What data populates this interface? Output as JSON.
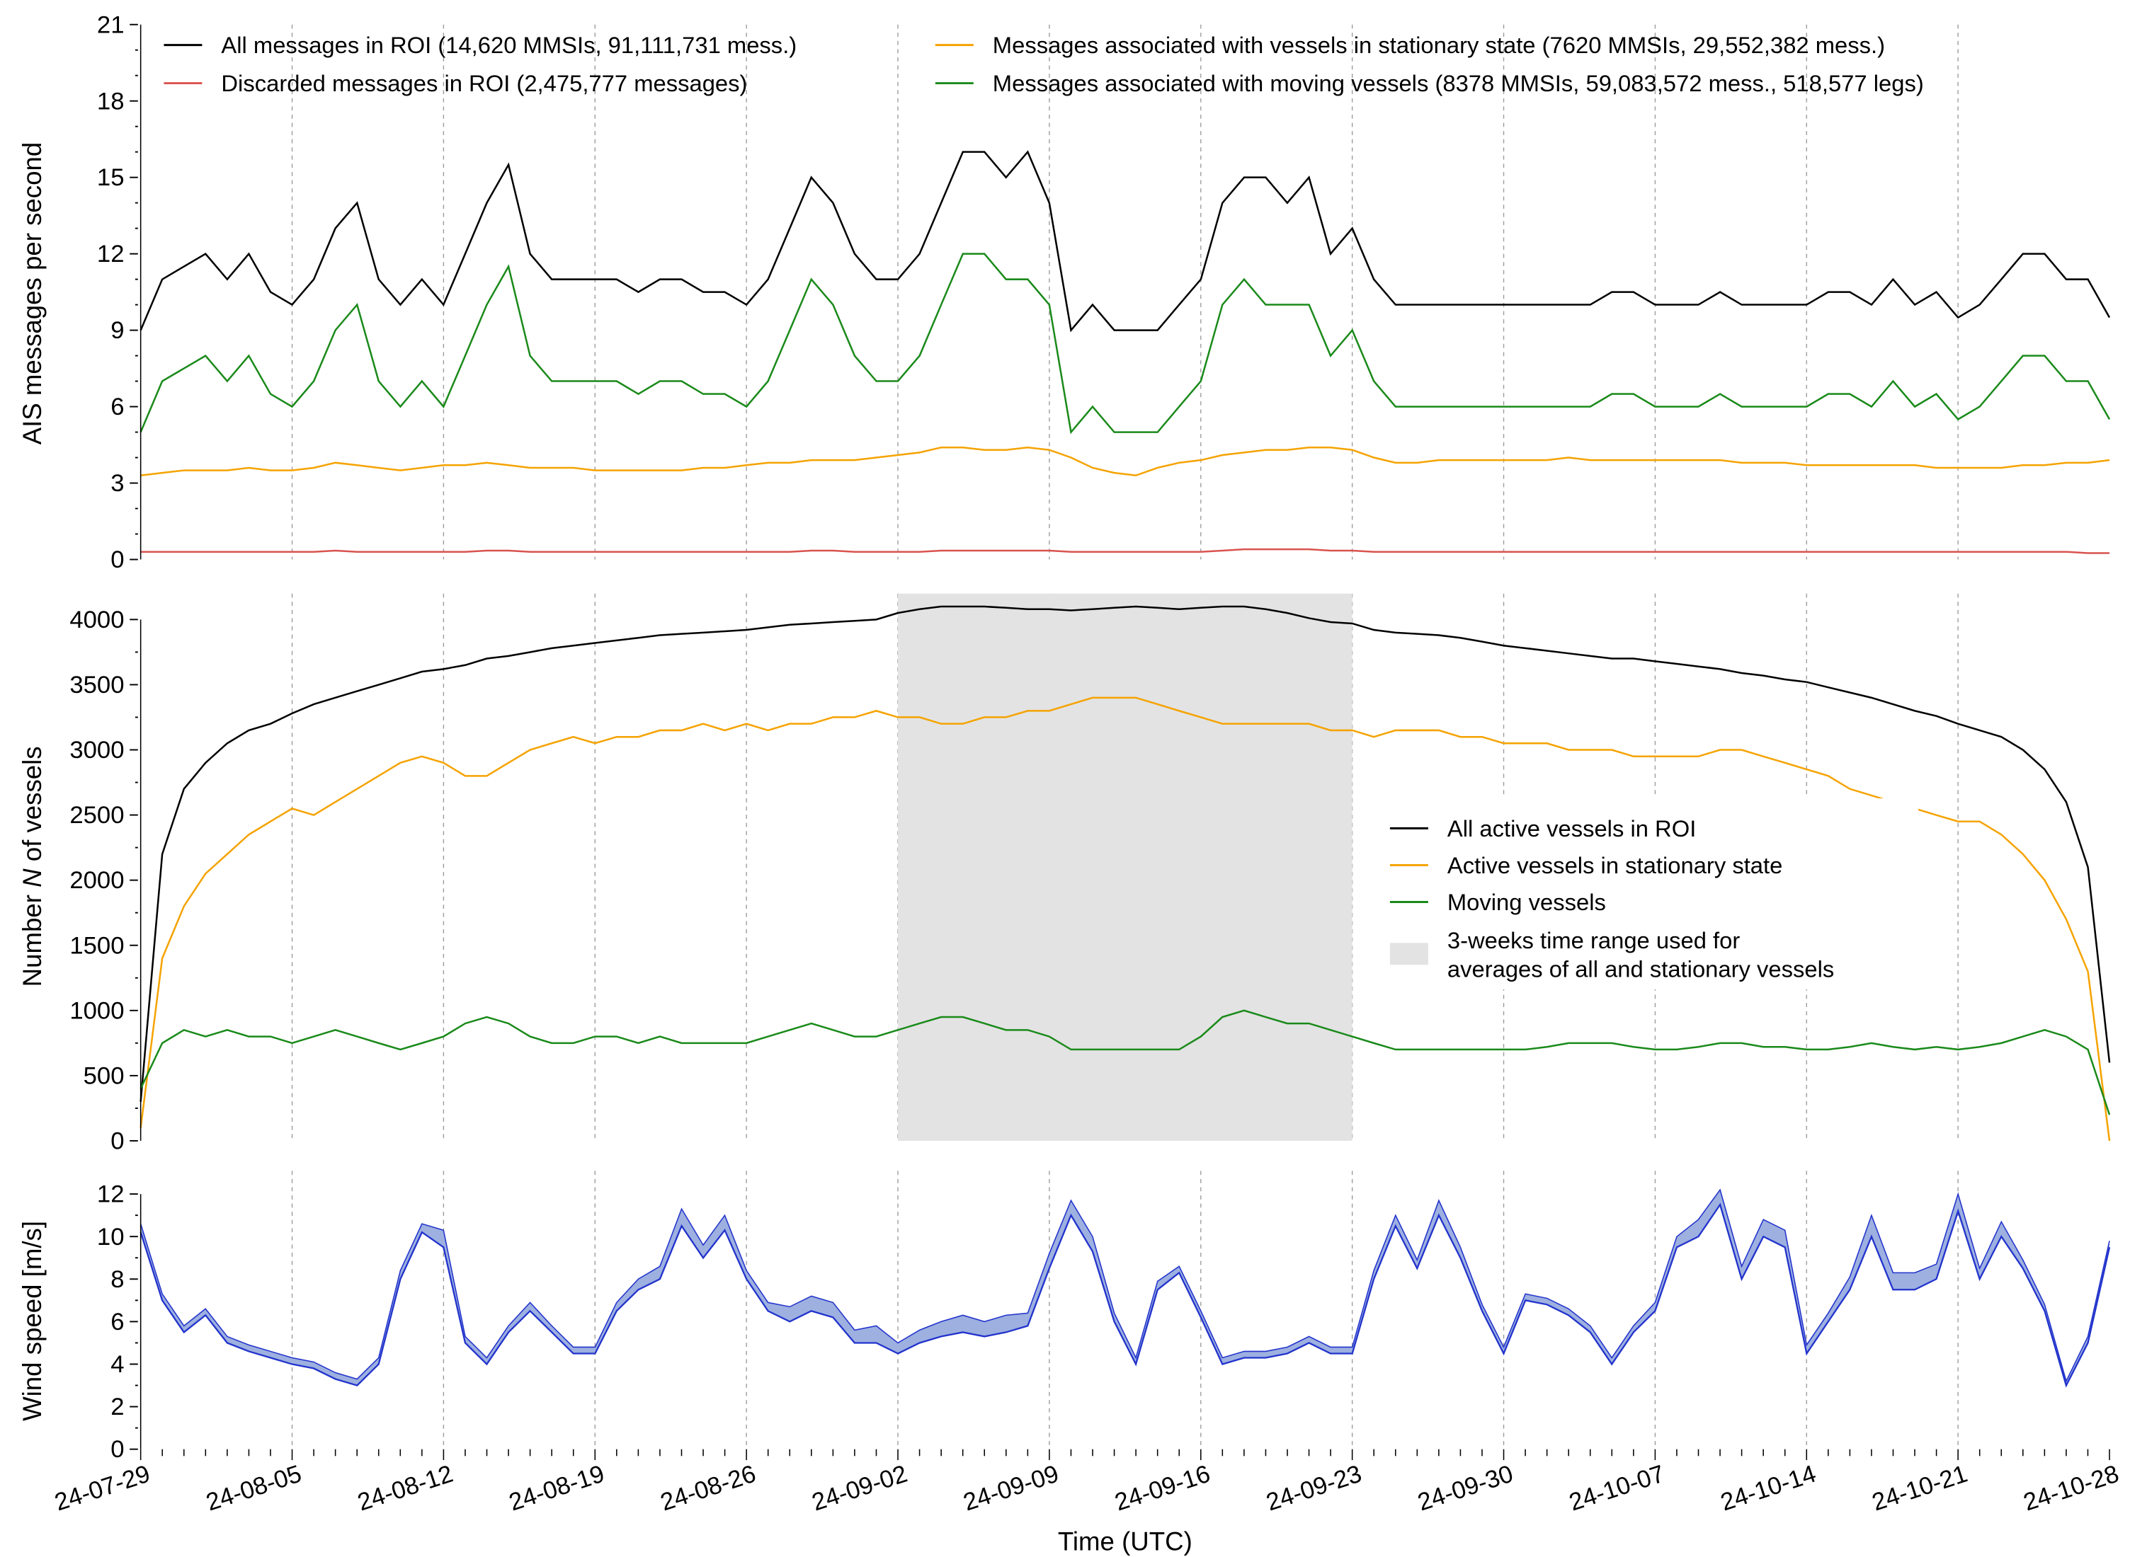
{
  "chart_data": [
    {
      "type": "line",
      "panel": "messages",
      "ylabel": "AIS messages per second",
      "ylim": [
        0,
        21
      ],
      "yticks": [
        0,
        3,
        6,
        9,
        12,
        15,
        18,
        21
      ],
      "legend_placement": "top",
      "x_start": "2024-07-29",
      "x_step_days": 1,
      "series": [
        {
          "name": "All messages in ROI (14,620 MMSIs, 91,111,731 mess.)",
          "color": "#000000",
          "values": [
            9,
            11,
            11.5,
            12,
            11,
            12,
            10.5,
            10,
            11,
            13,
            14,
            11,
            10,
            11,
            10,
            12,
            14,
            15.5,
            12,
            11,
            11,
            11,
            11,
            10.5,
            11,
            11,
            10.5,
            10.5,
            10,
            11,
            13,
            15,
            14,
            12,
            11,
            11,
            12,
            14,
            16,
            16,
            15,
            16,
            14,
            9,
            10,
            9,
            9,
            9,
            10,
            11,
            14,
            15,
            15,
            14,
            15,
            12,
            13,
            11,
            10,
            10,
            10,
            10,
            10,
            10,
            10,
            10,
            10,
            10,
            10.5,
            10.5,
            10,
            10,
            10,
            10.5,
            10,
            10,
            10,
            10,
            10.5,
            10.5,
            10,
            11,
            10,
            10.5,
            9.5,
            10,
            11,
            12,
            12,
            11,
            11,
            9.5
          ]
        },
        {
          "name": "Discarded messages in ROI (2,475,777 messages)",
          "color": "#d9534f",
          "values": [
            0.3,
            0.3,
            0.3,
            0.3,
            0.3,
            0.3,
            0.3,
            0.3,
            0.3,
            0.35,
            0.3,
            0.3,
            0.3,
            0.3,
            0.3,
            0.3,
            0.35,
            0.35,
            0.3,
            0.3,
            0.3,
            0.3,
            0.3,
            0.3,
            0.3,
            0.3,
            0.3,
            0.3,
            0.3,
            0.3,
            0.3,
            0.35,
            0.35,
            0.3,
            0.3,
            0.3,
            0.3,
            0.35,
            0.35,
            0.35,
            0.35,
            0.35,
            0.35,
            0.3,
            0.3,
            0.3,
            0.3,
            0.3,
            0.3,
            0.3,
            0.35,
            0.4,
            0.4,
            0.4,
            0.4,
            0.35,
            0.35,
            0.3,
            0.3,
            0.3,
            0.3,
            0.3,
            0.3,
            0.3,
            0.3,
            0.3,
            0.3,
            0.3,
            0.3,
            0.3,
            0.3,
            0.3,
            0.3,
            0.3,
            0.3,
            0.3,
            0.3,
            0.3,
            0.3,
            0.3,
            0.3,
            0.3,
            0.3,
            0.3,
            0.3,
            0.3,
            0.3,
            0.3,
            0.3,
            0.3,
            0.25,
            0.25
          ]
        },
        {
          "name": "Messages associated with vessels in stationary state (7620 MMSIs, 29,552,382 mess.)",
          "color": "#f5a300",
          "values": [
            3.3,
            3.4,
            3.5,
            3.5,
            3.5,
            3.6,
            3.5,
            3.5,
            3.6,
            3.8,
            3.7,
            3.6,
            3.5,
            3.6,
            3.7,
            3.7,
            3.8,
            3.7,
            3.6,
            3.6,
            3.6,
            3.5,
            3.5,
            3.5,
            3.5,
            3.5,
            3.6,
            3.6,
            3.7,
            3.8,
            3.8,
            3.9,
            3.9,
            3.9,
            4.0,
            4.1,
            4.2,
            4.4,
            4.4,
            4.3,
            4.3,
            4.4,
            4.3,
            4.0,
            3.6,
            3.4,
            3.3,
            3.6,
            3.8,
            3.9,
            4.1,
            4.2,
            4.3,
            4.3,
            4.4,
            4.4,
            4.3,
            4.0,
            3.8,
            3.8,
            3.9,
            3.9,
            3.9,
            3.9,
            3.9,
            3.9,
            4.0,
            3.9,
            3.9,
            3.9,
            3.9,
            3.9,
            3.9,
            3.9,
            3.8,
            3.8,
            3.8,
            3.7,
            3.7,
            3.7,
            3.7,
            3.7,
            3.7,
            3.6,
            3.6,
            3.6,
            3.6,
            3.7,
            3.7,
            3.8,
            3.8,
            3.9
          ]
        },
        {
          "name": "Messages associated with moving vessels (8378 MMSIs, 59,083,572 mess., 518,577 legs)",
          "color": "#1a8a1a",
          "values": [
            5,
            7,
            7.5,
            8,
            7,
            8,
            6.5,
            6,
            7,
            9,
            10,
            7,
            6,
            7,
            6,
            8,
            10,
            11.5,
            8,
            7,
            7,
            7,
            7,
            6.5,
            7,
            7,
            6.5,
            6.5,
            6,
            7,
            9,
            11,
            10,
            8,
            7,
            7,
            8,
            10,
            12,
            12,
            11,
            11,
            10,
            5,
            6,
            5,
            5,
            5,
            6,
            7,
            10,
            11,
            10,
            10,
            10,
            8,
            9,
            7,
            6,
            6,
            6,
            6,
            6,
            6,
            6,
            6,
            6,
            6,
            6.5,
            6.5,
            6,
            6,
            6,
            6.5,
            6,
            6,
            6,
            6,
            6.5,
            6.5,
            6,
            7,
            6,
            6.5,
            5.5,
            6,
            7,
            8,
            8,
            7,
            7,
            5.5
          ]
        }
      ]
    },
    {
      "type": "line",
      "panel": "vessels",
      "ylabel_parts": [
        "Number ",
        "N",
        " of vessels"
      ],
      "ylim": [
        0,
        4200
      ],
      "yticks": [
        0,
        500,
        1000,
        1500,
        2000,
        2500,
        3000,
        3500,
        4000
      ],
      "legend_placement": "center-right",
      "x_start": "2024-07-29",
      "x_step_days": 1,
      "shaded_range": {
        "label_lines": [
          "3-weeks time range used for",
          "averages of all and stationary vessels"
        ],
        "start": "24-09-02",
        "end": "24-09-23",
        "color": "#e3e3e3"
      },
      "series": [
        {
          "name": "All active vessels in ROI",
          "color": "#000000",
          "values": [
            300,
            2200,
            2700,
            2900,
            3050,
            3150,
            3200,
            3280,
            3350,
            3400,
            3450,
            3500,
            3550,
            3600,
            3620,
            3650,
            3700,
            3720,
            3750,
            3780,
            3800,
            3820,
            3840,
            3860,
            3880,
            3890,
            3900,
            3910,
            3920,
            3940,
            3960,
            3970,
            3980,
            3990,
            4000,
            4050,
            4080,
            4100,
            4100,
            4100,
            4090,
            4080,
            4080,
            4070,
            4080,
            4090,
            4100,
            4090,
            4080,
            4090,
            4100,
            4100,
            4080,
            4050,
            4010,
            3980,
            3970,
            3920,
            3900,
            3890,
            3880,
            3860,
            3830,
            3800,
            3780,
            3760,
            3740,
            3720,
            3700,
            3700,
            3680,
            3660,
            3640,
            3620,
            3590,
            3570,
            3540,
            3520,
            3480,
            3440,
            3400,
            3350,
            3300,
            3260,
            3200,
            3150,
            3100,
            3000,
            2850,
            2600,
            2100,
            600
          ]
        },
        {
          "name": "Active vessels in stationary state",
          "color": "#f5a300",
          "values": [
            100,
            1400,
            1800,
            2050,
            2200,
            2350,
            2450,
            2550,
            2500,
            2600,
            2700,
            2800,
            2900,
            2950,
            2900,
            2800,
            2800,
            2900,
            3000,
            3050,
            3100,
            3050,
            3100,
            3100,
            3150,
            3150,
            3200,
            3150,
            3200,
            3150,
            3200,
            3200,
            3250,
            3250,
            3300,
            3250,
            3250,
            3200,
            3200,
            3250,
            3250,
            3300,
            3300,
            3350,
            3400,
            3400,
            3400,
            3350,
            3300,
            3250,
            3200,
            3200,
            3200,
            3200,
            3200,
            3150,
            3150,
            3100,
            3150,
            3150,
            3150,
            3100,
            3100,
            3050,
            3050,
            3050,
            3000,
            3000,
            3000,
            2950,
            2950,
            2950,
            2950,
            3000,
            3000,
            2950,
            2900,
            2850,
            2800,
            2700,
            2650,
            2600,
            2550,
            2500,
            2450,
            2450,
            2350,
            2200,
            2000,
            1700,
            1300,
            0
          ]
        },
        {
          "name": "Moving vessels",
          "color": "#1a8a1a",
          "values": [
            400,
            750,
            850,
            800,
            850,
            800,
            800,
            750,
            800,
            850,
            800,
            750,
            700,
            750,
            800,
            900,
            950,
            900,
            800,
            750,
            750,
            800,
            800,
            750,
            800,
            750,
            750,
            750,
            750,
            800,
            850,
            900,
            850,
            800,
            800,
            850,
            900,
            950,
            950,
            900,
            850,
            850,
            800,
            700,
            700,
            700,
            700,
            700,
            700,
            800,
            950,
            1000,
            950,
            900,
            900,
            850,
            800,
            750,
            700,
            700,
            700,
            700,
            700,
            700,
            700,
            720,
            750,
            750,
            750,
            720,
            700,
            700,
            720,
            750,
            750,
            720,
            720,
            700,
            700,
            720,
            750,
            720,
            700,
            720,
            700,
            720,
            750,
            800,
            850,
            800,
            700,
            200
          ]
        }
      ]
    },
    {
      "type": "area",
      "panel": "wind",
      "ylabel": "Wind speed [m/s]",
      "ylim": [
        0,
        13
      ],
      "yticks": [
        0,
        2,
        4,
        6,
        8,
        10,
        12
      ],
      "xlabel": "Time (UTC)",
      "x_start": "2024-07-29",
      "x_step_days": 1,
      "line_color": "#2233cc",
      "band_color": "#9db0e0",
      "lower": [
        10.2,
        7,
        5.5,
        6.3,
        5,
        4.6,
        4.3,
        4,
        3.8,
        3.3,
        3,
        4,
        8,
        10.2,
        9.5,
        5,
        4,
        5.5,
        6.5,
        5.5,
        4.5,
        4.5,
        6.5,
        7.5,
        8,
        10.5,
        9,
        10.3,
        8,
        6.5,
        6,
        6.5,
        6.2,
        5,
        5,
        4.5,
        5,
        5.3,
        5.5,
        5.3,
        5.5,
        5.8,
        8.5,
        11,
        9.3,
        6,
        4,
        7.5,
        8.3,
        6.2,
        4,
        4.3,
        4.3,
        4.5,
        5,
        4.5,
        4.5,
        8,
        10.5,
        8.5,
        11,
        9,
        6.5,
        4.5,
        7,
        6.8,
        6.3,
        5.5,
        4,
        5.5,
        6.5,
        9.5,
        10,
        11.5,
        8,
        10,
        9.5,
        4.5,
        6,
        7.5,
        10,
        7.5,
        7.5,
        8,
        11.2,
        8,
        10,
        8.5,
        6.5,
        3,
        5,
        9.5
      ],
      "upper": [
        10.6,
        7.3,
        5.8,
        6.6,
        5.3,
        4.9,
        4.6,
        4.3,
        4.1,
        3.6,
        3.3,
        4.3,
        8.4,
        10.6,
        10.3,
        5.3,
        4.3,
        5.8,
        6.9,
        5.8,
        4.8,
        4.8,
        6.9,
        8,
        8.6,
        11.3,
        9.6,
        11,
        8.4,
        6.9,
        6.7,
        7.2,
        6.9,
        5.6,
        5.8,
        5,
        5.6,
        6,
        6.3,
        6,
        6.3,
        6.4,
        9.2,
        11.7,
        10,
        6.4,
        4.3,
        7.9,
        8.6,
        6.5,
        4.3,
        4.6,
        4.6,
        4.8,
        5.3,
        4.8,
        4.8,
        8.4,
        11,
        8.9,
        11.7,
        9.5,
        6.8,
        4.8,
        7.3,
        7.1,
        6.6,
        5.8,
        4.3,
        5.8,
        6.9,
        10,
        10.8,
        12.2,
        8.6,
        10.8,
        10.3,
        4.9,
        6.4,
        8.1,
        11,
        8.3,
        8.3,
        8.7,
        12,
        8.5,
        10.7,
        8.9,
        6.8,
        3.2,
        5.3,
        9.8
      ]
    },
    {
      "x_ticks": [
        "24-07-29",
        "24-08-05",
        "24-08-12",
        "24-08-19",
        "24-08-26",
        "24-09-02",
        "24-09-09",
        "24-09-16",
        "24-09-23",
        "24-09-30",
        "24-10-07",
        "24-10-14",
        "24-10-21",
        "24-10-28"
      ],
      "x_range_days": 91,
      "grid": "vertical dashed at weekly ticks"
    }
  ]
}
